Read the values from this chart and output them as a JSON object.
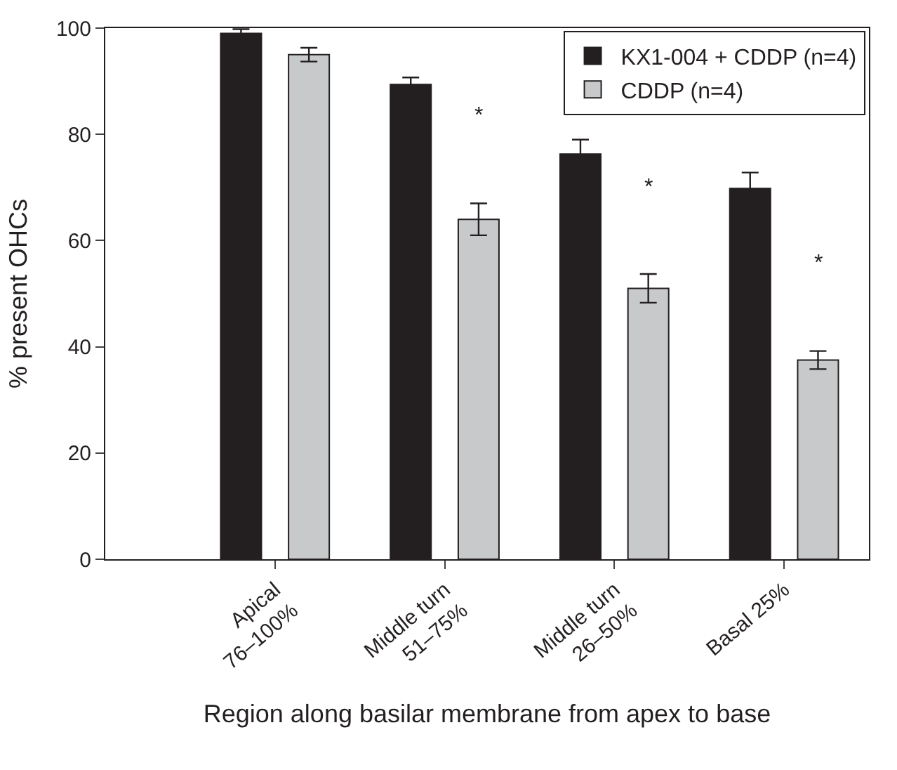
{
  "chart_data": {
    "type": "bar",
    "xlabel": "Region along basilar membrane from apex to base",
    "ylabel": "% present OHCs",
    "categories": [
      "Apical\n76–100%",
      "Middle turn\n51–75%",
      "Middle turn\n26–50%",
      "Basal 25%"
    ],
    "series": [
      {
        "name": "KX1-004 + CDDP (n=4)",
        "color": "#231f20",
        "values": [
          99,
          89.4,
          76.3,
          69.8
        ],
        "errors": [
          0.8,
          1.3,
          2.7,
          3
        ]
      },
      {
        "name": "CDDP (n=4)",
        "color": "#c8c9cb",
        "values": [
          95,
          64,
          51,
          37.5
        ],
        "errors": [
          1.3,
          3,
          2.7,
          1.7
        ]
      }
    ],
    "annotations": [
      "*",
      "*",
      "*"
    ],
    "ylim": [
      0,
      100
    ],
    "yticks": [
      0,
      20,
      40,
      60,
      80,
      100
    ],
    "legend": "top right"
  }
}
